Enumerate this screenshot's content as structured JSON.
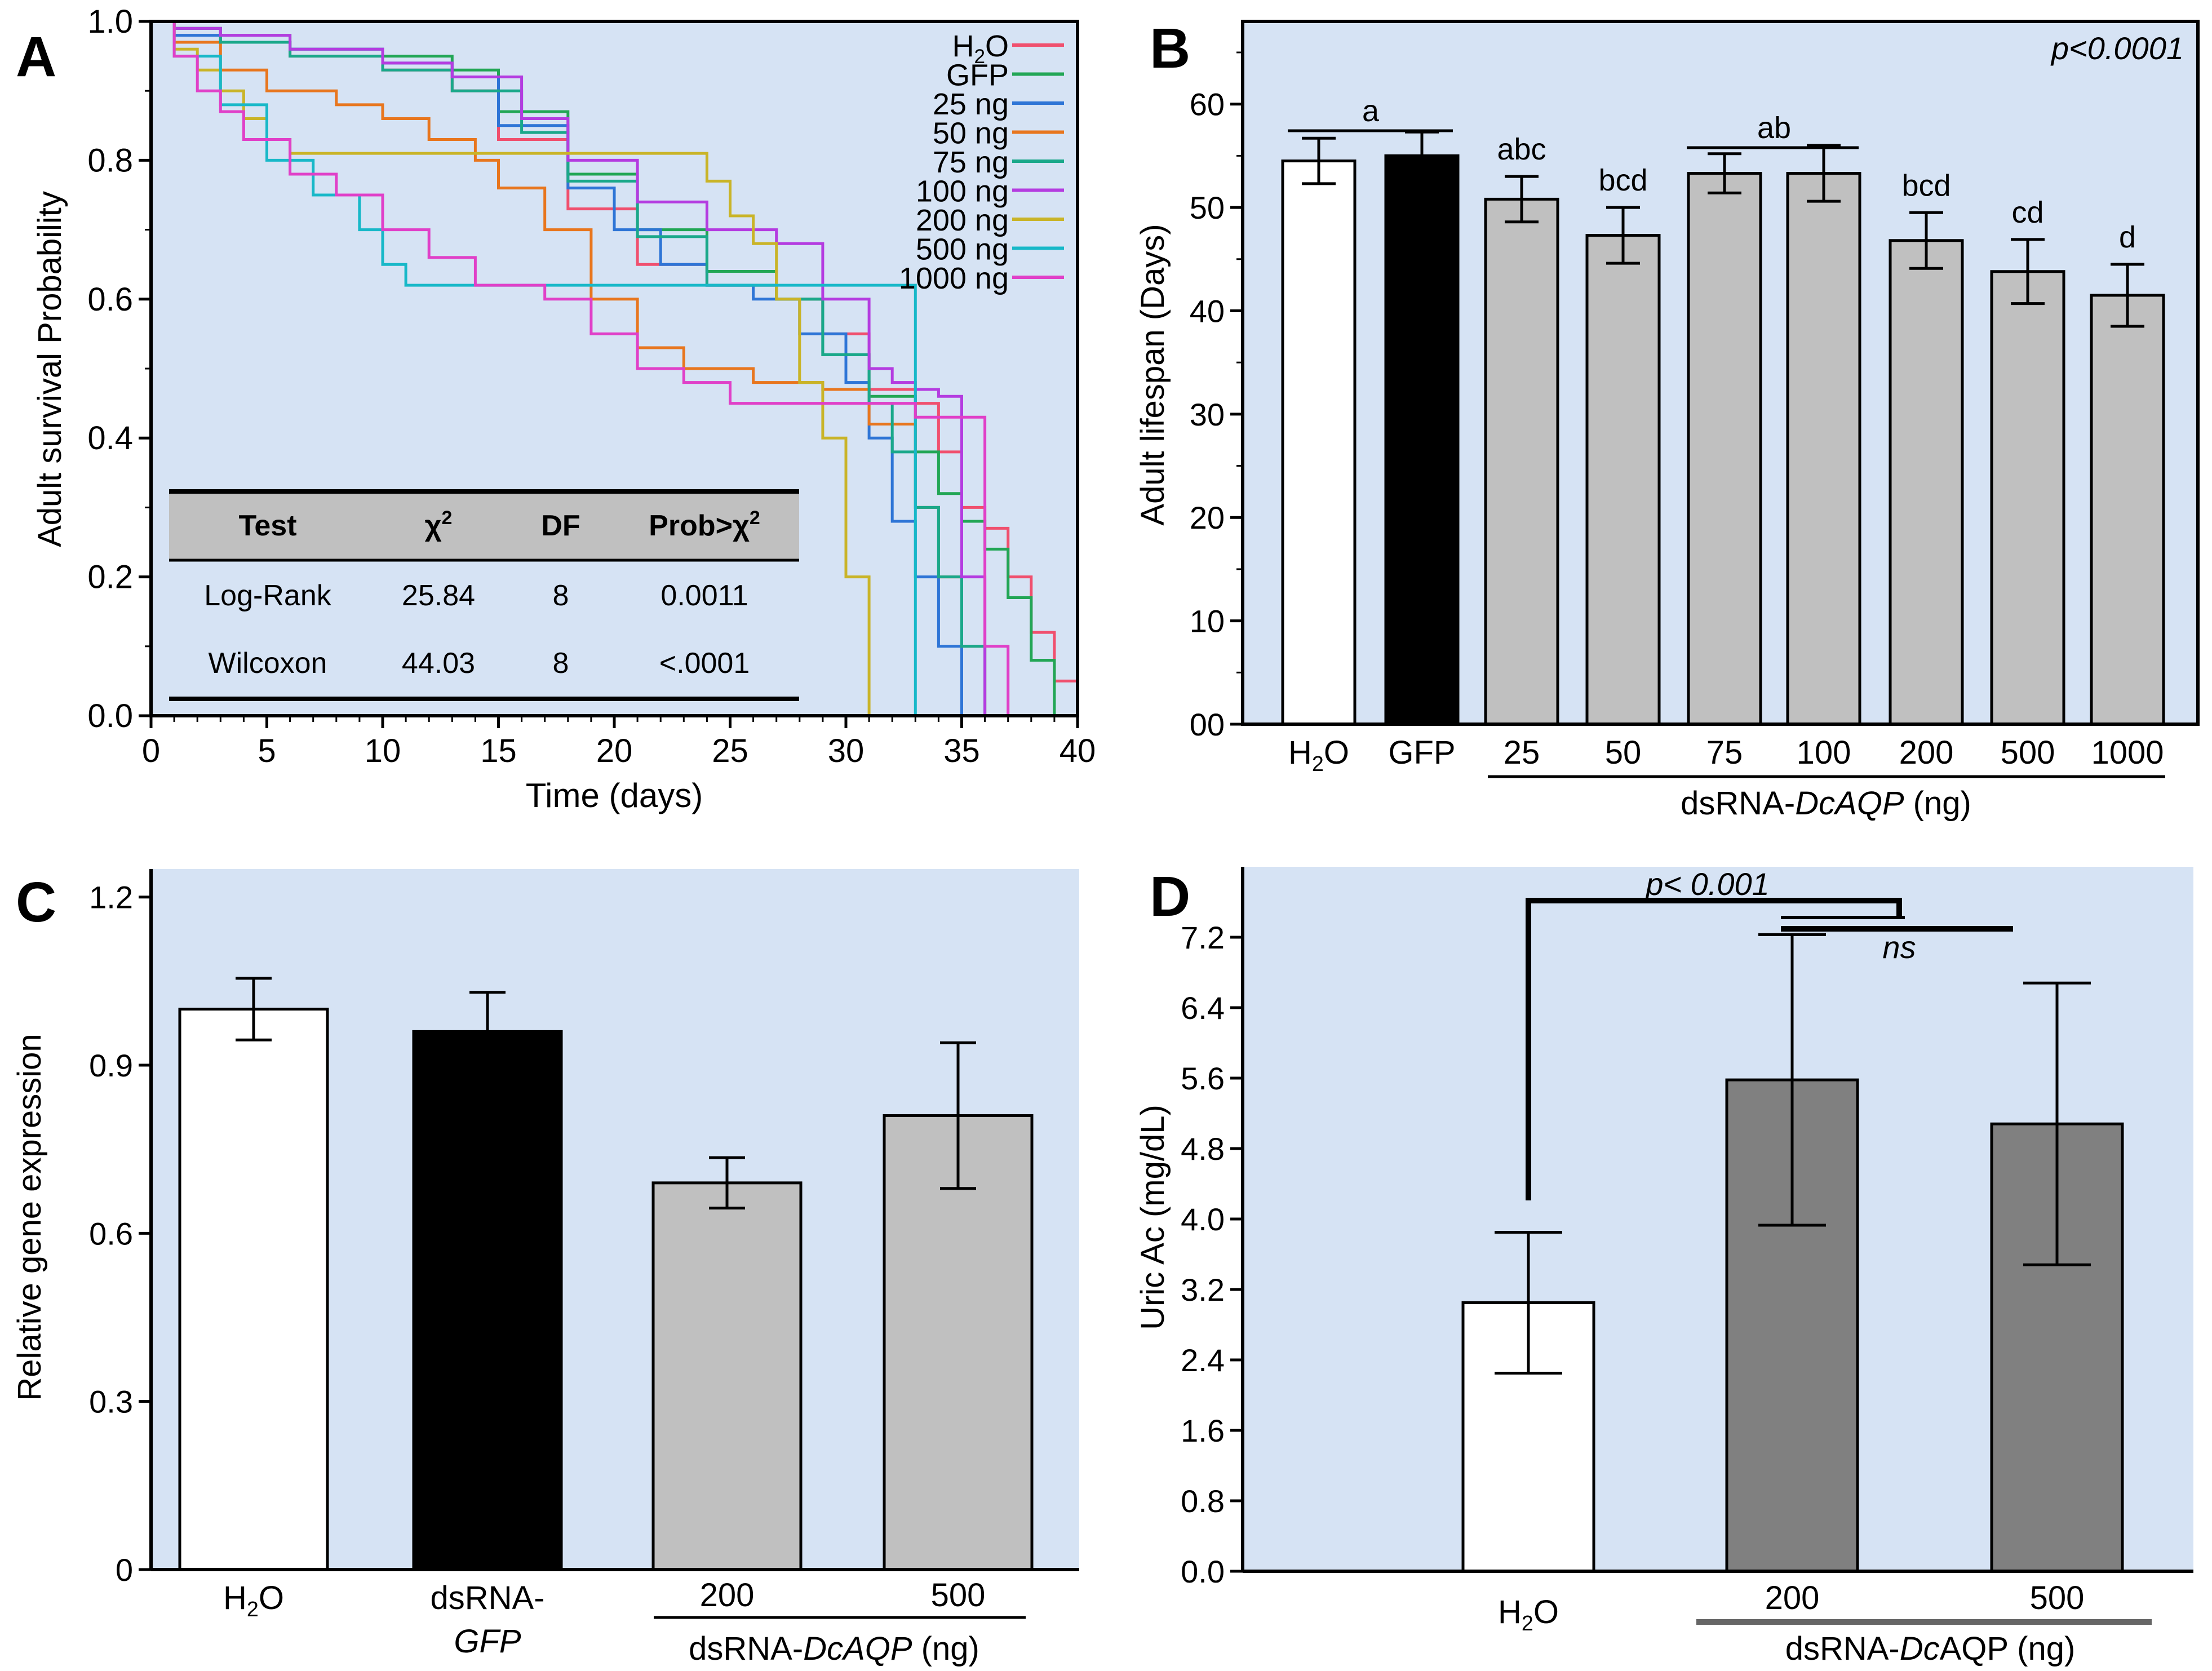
{
  "figure": {
    "panel_letters": [
      "A",
      "B",
      "C",
      "D"
    ],
    "background_color": "#d6e3f4",
    "ink_color": "#000000"
  },
  "chart_data": [
    {
      "panel": "A",
      "type": "line",
      "subtype": "step",
      "xlabel": "Time (days)",
      "ylabel": "Adult survival Probability",
      "xlim": [
        0,
        40
      ],
      "ylim": [
        0,
        1.0
      ],
      "xticks": [
        0,
        5,
        10,
        15,
        20,
        25,
        30,
        35,
        40
      ],
      "yticks": [
        0.0,
        0.2,
        0.4,
        0.6,
        0.8,
        1.0
      ],
      "ytick_labels": [
        "0.0",
        "0.2",
        "0.4",
        "0.6",
        "0.8",
        "1.0"
      ],
      "legend_position": "top-right",
      "series": [
        {
          "name": "H2O",
          "color": "#f0506e",
          "x": [
            0,
            1,
            3,
            6,
            10,
            13,
            15,
            18,
            21,
            24,
            27,
            29,
            31,
            33,
            34,
            35,
            36,
            37,
            38,
            39,
            40
          ],
          "y": [
            1.0,
            0.99,
            0.97,
            0.95,
            0.93,
            0.9,
            0.83,
            0.73,
            0.65,
            0.62,
            0.6,
            0.55,
            0.47,
            0.45,
            0.38,
            0.3,
            0.27,
            0.2,
            0.12,
            0.05,
            0.0
          ]
        },
        {
          "name": "GFP",
          "color": "#22a655",
          "x": [
            0,
            1,
            3,
            6,
            10,
            13,
            15,
            18,
            21,
            24,
            27,
            29,
            31,
            33,
            34,
            35,
            36,
            37,
            38,
            39
          ],
          "y": [
            1.0,
            0.99,
            0.98,
            0.96,
            0.95,
            0.93,
            0.87,
            0.78,
            0.7,
            0.64,
            0.6,
            0.52,
            0.46,
            0.38,
            0.32,
            0.28,
            0.24,
            0.17,
            0.08,
            0.0
          ]
        },
        {
          "name": "25 ng",
          "color": "#2e75d6",
          "x": [
            0,
            1,
            3,
            6,
            10,
            13,
            15,
            18,
            20,
            22,
            24,
            26,
            28,
            30,
            31,
            32,
            33,
            34,
            35
          ],
          "y": [
            1.0,
            0.98,
            0.97,
            0.96,
            0.94,
            0.92,
            0.85,
            0.76,
            0.7,
            0.65,
            0.62,
            0.6,
            0.55,
            0.48,
            0.4,
            0.28,
            0.2,
            0.1,
            0.0
          ]
        },
        {
          "name": "50 ng",
          "color": "#e8761e",
          "x": [
            0,
            1,
            3,
            5,
            8,
            10,
            12,
            14,
            15,
            17,
            19,
            21,
            23,
            26,
            29,
            31,
            33,
            34,
            35,
            36
          ],
          "y": [
            1.0,
            0.97,
            0.93,
            0.9,
            0.88,
            0.86,
            0.83,
            0.8,
            0.76,
            0.7,
            0.6,
            0.53,
            0.5,
            0.48,
            0.47,
            0.42,
            0.3,
            0.2,
            0.1,
            0.0
          ]
        },
        {
          "name": "75 ng",
          "color": "#1aa88a",
          "x": [
            0,
            1,
            3,
            6,
            10,
            13,
            16,
            18,
            21,
            24,
            27,
            29,
            31,
            32,
            33,
            34,
            35,
            36
          ],
          "y": [
            1.0,
            0.99,
            0.97,
            0.95,
            0.93,
            0.9,
            0.84,
            0.77,
            0.69,
            0.62,
            0.6,
            0.52,
            0.45,
            0.38,
            0.3,
            0.2,
            0.1,
            0.0
          ]
        },
        {
          "name": "100 ng",
          "color": "#b43ce0",
          "x": [
            0,
            1,
            3,
            6,
            10,
            13,
            16,
            18,
            21,
            24,
            27,
            29,
            31,
            32,
            33,
            34,
            35,
            36
          ],
          "y": [
            1.0,
            0.99,
            0.98,
            0.96,
            0.94,
            0.92,
            0.86,
            0.8,
            0.74,
            0.7,
            0.68,
            0.6,
            0.5,
            0.48,
            0.47,
            0.46,
            0.2,
            0.0
          ]
        },
        {
          "name": "200 ng",
          "color": "#c9b428",
          "x": [
            0,
            1,
            2,
            3,
            4,
            5,
            6,
            7,
            23,
            24,
            25,
            26,
            27,
            28,
            29,
            30,
            31
          ],
          "y": [
            1.0,
            0.96,
            0.93,
            0.9,
            0.86,
            0.83,
            0.81,
            0.81,
            0.81,
            0.77,
            0.72,
            0.68,
            0.6,
            0.48,
            0.4,
            0.2,
            0.0
          ]
        },
        {
          "name": "500 ng",
          "color": "#18b8c8",
          "x": [
            0,
            1,
            3,
            5,
            7,
            9,
            10,
            11,
            15,
            29,
            32,
            33
          ],
          "y": [
            1.0,
            0.95,
            0.88,
            0.8,
            0.75,
            0.7,
            0.65,
            0.62,
            0.62,
            0.62,
            0.62,
            0.0
          ]
        },
        {
          "name": "1000 ng",
          "color": "#e040c8",
          "x": [
            0,
            1,
            2,
            3,
            4,
            6,
            8,
            10,
            12,
            14,
            17,
            19,
            21,
            23,
            25,
            27,
            30,
            33,
            36,
            37
          ],
          "y": [
            1.0,
            0.95,
            0.9,
            0.87,
            0.83,
            0.78,
            0.75,
            0.7,
            0.66,
            0.62,
            0.6,
            0.55,
            0.5,
            0.48,
            0.45,
            0.45,
            0.45,
            0.43,
            0.1,
            0.0
          ]
        }
      ],
      "table": {
        "columns": [
          "Test",
          "χ2",
          "DF",
          "Prob>χ2"
        ],
        "rows": [
          [
            "Log-Rank",
            "25.84",
            "8",
            "0.0011"
          ],
          [
            "Wilcoxon",
            "44.03",
            "8",
            "<.0001"
          ]
        ]
      }
    },
    {
      "panel": "B",
      "type": "bar",
      "ylabel": "Adult lifespan (Days)",
      "ylim": [
        0,
        68
      ],
      "yticks": [
        0,
        10,
        20,
        30,
        40,
        50,
        60
      ],
      "ytick_labels": [
        "00",
        "10",
        "20",
        "30",
        "40",
        "50",
        "60"
      ],
      "categories": [
        "H2O",
        "GFP",
        "25",
        "50",
        "75",
        "100",
        "200",
        "500",
        "1000"
      ],
      "values": [
        54.5,
        55,
        50.8,
        47.3,
        53.3,
        53.3,
        46.8,
        43.8,
        41.5
      ],
      "errors": [
        2.2,
        2.3,
        2.2,
        2.7,
        1.9,
        2.7,
        2.7,
        3.1,
        3.0
      ],
      "bar_colors": [
        "#ffffff",
        "#000000",
        "#c0c0c0",
        "#c0c0c0",
        "#c0c0c0",
        "#c0c0c0",
        "#c0c0c0",
        "#c0c0c0",
        "#c0c0c0"
      ],
      "significance_letters": [
        "a",
        "",
        "abc",
        "bcd",
        "ab",
        "",
        "bcd",
        "cd",
        "d"
      ],
      "annotation": "p<0.0001",
      "group_label_prefix": "dsRNA-",
      "group_label_gene": "DcAQP",
      "group_label_suffix": " (ng)"
    },
    {
      "panel": "C",
      "type": "bar",
      "ylabel": "Relative gene expression",
      "ylim": [
        0,
        1.25
      ],
      "yticks": [
        0,
        0.3,
        0.6,
        0.9,
        1.2
      ],
      "ytick_labels": [
        "0",
        "0.3",
        "0.6",
        "0.9",
        "1.2"
      ],
      "categories": [
        "H2O",
        "dsRNA-GFP",
        "200",
        "500"
      ],
      "values": [
        1.0,
        0.96,
        0.69,
        0.81
      ],
      "errors": [
        0.055,
        0.07,
        0.045,
        0.13
      ],
      "bar_colors": [
        "#ffffff",
        "#000000",
        "#c0c0c0",
        "#c0c0c0"
      ],
      "group_label_prefix": "dsRNA-",
      "group_label_gene": "DcAQP",
      "group_label_suffix": " (ng)"
    },
    {
      "panel": "D",
      "type": "bar",
      "ylabel": "Uric Ac (mg/dL)",
      "ylim": [
        0,
        8.0
      ],
      "yticks": [
        0,
        0.8,
        1.6,
        2.4,
        3.2,
        4.0,
        4.8,
        5.6,
        6.4,
        7.2
      ],
      "ytick_labels": [
        "0.0",
        "0.8",
        "1.6",
        "2.4",
        "3.2",
        "4.0",
        "4.8",
        "5.6",
        "6.4",
        "7.2"
      ],
      "categories": [
        "H2O",
        "200",
        "500"
      ],
      "values": [
        3.05,
        5.58,
        5.08
      ],
      "errors": [
        0.8,
        1.65,
        1.6
      ],
      "bar_colors": [
        "#ffffff",
        "#808080",
        "#808080"
      ],
      "comparisons": [
        {
          "label": "p< 0.001",
          "from": "H2O",
          "to": "group"
        },
        {
          "label": "ns",
          "from": "200",
          "to": "500"
        }
      ],
      "group_label_prefix": "dsRNA-",
      "group_label_gene": "Dc",
      "group_label_suffix": "AQP (ng)"
    }
  ]
}
